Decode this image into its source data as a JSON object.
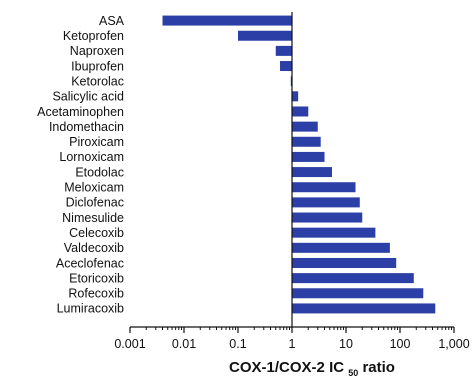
{
  "chart_data": {
    "type": "bar",
    "orientation": "horizontal",
    "x_scale": "log",
    "baseline": 1,
    "xlim": [
      0.001,
      1000
    ],
    "xticks": [
      "0.001",
      "0.01",
      "0.1",
      "1",
      "10",
      "100",
      "1,000"
    ],
    "xlabel": {
      "main": "COX-1/COX-2 IC",
      "subscript": "50",
      "suffix": " ratio"
    },
    "bar_color": "#2B3FA6",
    "grid": false,
    "categories": [
      "ASA",
      "Ketoprofen",
      "Naproxen",
      "Ibuprofen",
      "Ketorolac",
      "Salicylic acid",
      "Acetaminophen",
      "Indomethacin",
      "Piroxicam",
      "Lornoxicam",
      "Etodolac",
      "Meloxicam",
      "Diclofenac",
      "Nimesulide",
      "Celecoxib",
      "Valdecoxib",
      "Aceclofenac",
      "Etoricoxib",
      "Rofecoxib",
      "Lumiracoxib"
    ],
    "values": [
      0.004,
      0.1,
      0.5,
      0.6,
      0.95,
      1.3,
      2,
      3,
      3.4,
      4,
      5.5,
      15,
      18,
      20,
      35,
      65,
      85,
      180,
      270,
      450
    ]
  }
}
